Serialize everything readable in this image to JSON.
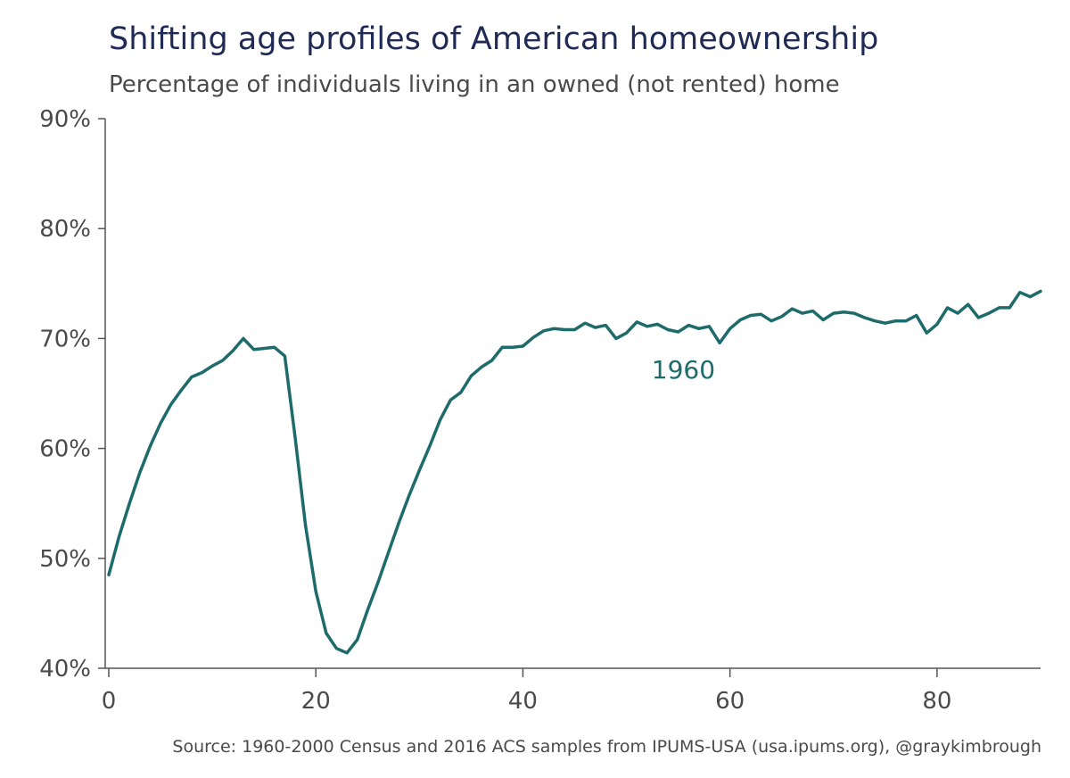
{
  "chart_data": {
    "type": "line",
    "title": "Shifting age profiles of American homeownership",
    "subtitle": "Percentage of individuals living in an owned (not rented) home",
    "source": "Source: 1960-2000 Census and 2016 ACS samples from IPUMS-USA (usa.ipums.org), @graykimbrough",
    "xlim": [
      0,
      90
    ],
    "ylim": [
      40,
      90
    ],
    "x_ticks": [
      0,
      20,
      40,
      60,
      80
    ],
    "x_tick_labels": [
      "0",
      "20",
      "40",
      "60",
      "80"
    ],
    "y_ticks": [
      40,
      50,
      60,
      70,
      80,
      90
    ],
    "y_tick_labels": [
      "40%",
      "50%",
      "60%",
      "70%",
      "80%",
      "90%"
    ],
    "grid": false,
    "line_color": "#1e6b6b",
    "series": [
      {
        "name": "1960",
        "x": [
          0,
          1,
          2,
          3,
          4,
          5,
          6,
          7,
          8,
          9,
          10,
          11,
          12,
          13,
          14,
          15,
          16,
          17,
          18,
          19,
          20,
          21,
          22,
          23,
          24,
          25,
          26,
          27,
          28,
          29,
          30,
          31,
          32,
          33,
          34,
          35,
          36,
          37,
          38,
          39,
          40,
          41,
          42,
          43,
          44,
          45,
          46,
          47,
          48,
          49,
          50,
          51,
          52,
          53,
          54,
          55,
          56,
          57,
          58,
          59,
          60,
          61,
          62,
          63,
          64,
          65,
          66,
          67,
          68,
          69,
          70,
          71,
          72,
          73,
          74,
          75,
          76,
          77,
          78,
          79,
          80,
          81,
          82,
          83,
          84,
          85,
          86,
          87,
          88,
          89,
          90
        ],
        "y": [
          48.5,
          52.0,
          55.0,
          57.8,
          60.2,
          62.3,
          64.0,
          65.3,
          66.5,
          66.9,
          67.5,
          68.0,
          68.9,
          70.0,
          69.0,
          69.1,
          69.2,
          68.4,
          61.0,
          53.0,
          47.0,
          43.2,
          41.8,
          41.4,
          42.6,
          45.3,
          47.8,
          50.5,
          53.2,
          55.7,
          58.0,
          60.2,
          62.6,
          64.4,
          65.1,
          66.6,
          67.4,
          68.0,
          69.2,
          69.2,
          69.3,
          70.1,
          70.7,
          70.9,
          70.8,
          70.8,
          71.4,
          71.0,
          71.2,
          70.0,
          70.5,
          71.5,
          71.1,
          71.3,
          70.8,
          70.6,
          71.2,
          70.9,
          71.1,
          69.6,
          70.9,
          71.7,
          72.1,
          72.2,
          71.6,
          72.0,
          72.7,
          72.3,
          72.5,
          71.7,
          72.3,
          72.4,
          72.3,
          71.9,
          71.6,
          71.4,
          71.6,
          71.6,
          72.1,
          70.5,
          71.3,
          72.8,
          72.3,
          73.1,
          71.9,
          72.3,
          72.8,
          72.8,
          74.2,
          73.8,
          74.3
        ]
      }
    ],
    "annotations": [
      {
        "text": "1960",
        "x": 55.5,
        "y": 67.2
      }
    ]
  }
}
